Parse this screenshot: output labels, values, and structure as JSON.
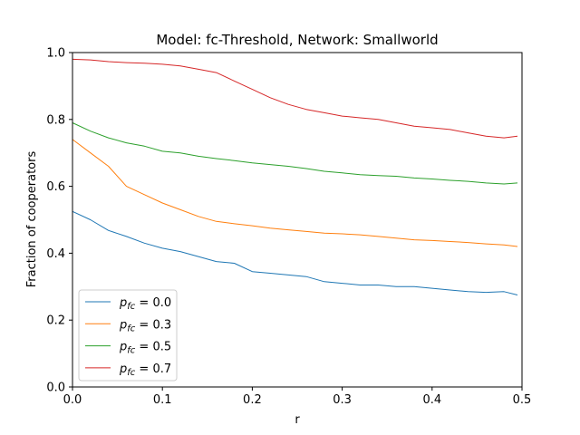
{
  "chart_data": {
    "type": "line",
    "title": "Model: fc-Threshold, Network: Smallworld",
    "xlabel": "r",
    "ylabel": "Fraction of cooperators",
    "xlim": [
      0.0,
      0.5
    ],
    "ylim": [
      0.0,
      1.0
    ],
    "xticks": [
      "0.0",
      "0.1",
      "0.2",
      "0.3",
      "0.4",
      "0.5"
    ],
    "yticks": [
      "0.0",
      "0.2",
      "0.4",
      "0.6",
      "0.8",
      "1.0"
    ],
    "grid": false,
    "legend_position": "lower-left",
    "series": [
      {
        "name": "p_fc = 0.0",
        "legend_main": "p",
        "legend_sub": "fc",
        "legend_value": " = 0.0",
        "color": "#1f77b4",
        "x": [
          0.0,
          0.02,
          0.04,
          0.06,
          0.08,
          0.1,
          0.12,
          0.14,
          0.16,
          0.18,
          0.2,
          0.22,
          0.24,
          0.26,
          0.28,
          0.3,
          0.32,
          0.34,
          0.36,
          0.38,
          0.4,
          0.42,
          0.44,
          0.46,
          0.48,
          0.495
        ],
        "y": [
          0.525,
          0.5,
          0.468,
          0.45,
          0.43,
          0.415,
          0.405,
          0.39,
          0.375,
          0.37,
          0.345,
          0.34,
          0.335,
          0.33,
          0.315,
          0.31,
          0.305,
          0.305,
          0.3,
          0.3,
          0.295,
          0.29,
          0.285,
          0.283,
          0.285,
          0.275
        ]
      },
      {
        "name": "p_fc = 0.3",
        "legend_main": "p",
        "legend_sub": "fc",
        "legend_value": " = 0.3",
        "color": "#ff7f0e",
        "x": [
          0.0,
          0.02,
          0.04,
          0.06,
          0.08,
          0.1,
          0.12,
          0.14,
          0.16,
          0.18,
          0.2,
          0.22,
          0.24,
          0.26,
          0.28,
          0.3,
          0.32,
          0.34,
          0.36,
          0.38,
          0.4,
          0.42,
          0.44,
          0.46,
          0.48,
          0.495
        ],
        "y": [
          0.74,
          0.7,
          0.66,
          0.6,
          0.575,
          0.55,
          0.53,
          0.51,
          0.495,
          0.488,
          0.482,
          0.475,
          0.47,
          0.465,
          0.46,
          0.458,
          0.455,
          0.45,
          0.445,
          0.44,
          0.438,
          0.435,
          0.432,
          0.428,
          0.425,
          0.42
        ]
      },
      {
        "name": "p_fc = 0.5",
        "legend_main": "p",
        "legend_sub": "fc",
        "legend_value": " = 0.5",
        "color": "#2ca02c",
        "x": [
          0.0,
          0.02,
          0.04,
          0.06,
          0.08,
          0.1,
          0.12,
          0.14,
          0.16,
          0.18,
          0.2,
          0.22,
          0.24,
          0.26,
          0.28,
          0.3,
          0.32,
          0.34,
          0.36,
          0.38,
          0.4,
          0.42,
          0.44,
          0.46,
          0.48,
          0.495
        ],
        "y": [
          0.79,
          0.765,
          0.745,
          0.73,
          0.72,
          0.705,
          0.7,
          0.69,
          0.683,
          0.677,
          0.67,
          0.665,
          0.66,
          0.653,
          0.645,
          0.64,
          0.635,
          0.632,
          0.63,
          0.625,
          0.622,
          0.618,
          0.615,
          0.61,
          0.607,
          0.61
        ]
      },
      {
        "name": "p_fc = 0.7",
        "legend_main": "p",
        "legend_sub": "fc",
        "legend_value": " = 0.7",
        "color": "#d62728",
        "x": [
          0.0,
          0.02,
          0.04,
          0.06,
          0.08,
          0.1,
          0.12,
          0.14,
          0.16,
          0.18,
          0.2,
          0.22,
          0.24,
          0.26,
          0.28,
          0.3,
          0.32,
          0.34,
          0.36,
          0.38,
          0.4,
          0.42,
          0.44,
          0.46,
          0.48,
          0.495
        ],
        "y": [
          0.98,
          0.978,
          0.973,
          0.97,
          0.968,
          0.965,
          0.96,
          0.95,
          0.94,
          0.915,
          0.89,
          0.865,
          0.845,
          0.83,
          0.82,
          0.81,
          0.805,
          0.8,
          0.79,
          0.78,
          0.775,
          0.77,
          0.76,
          0.75,
          0.745,
          0.75
        ]
      }
    ]
  }
}
